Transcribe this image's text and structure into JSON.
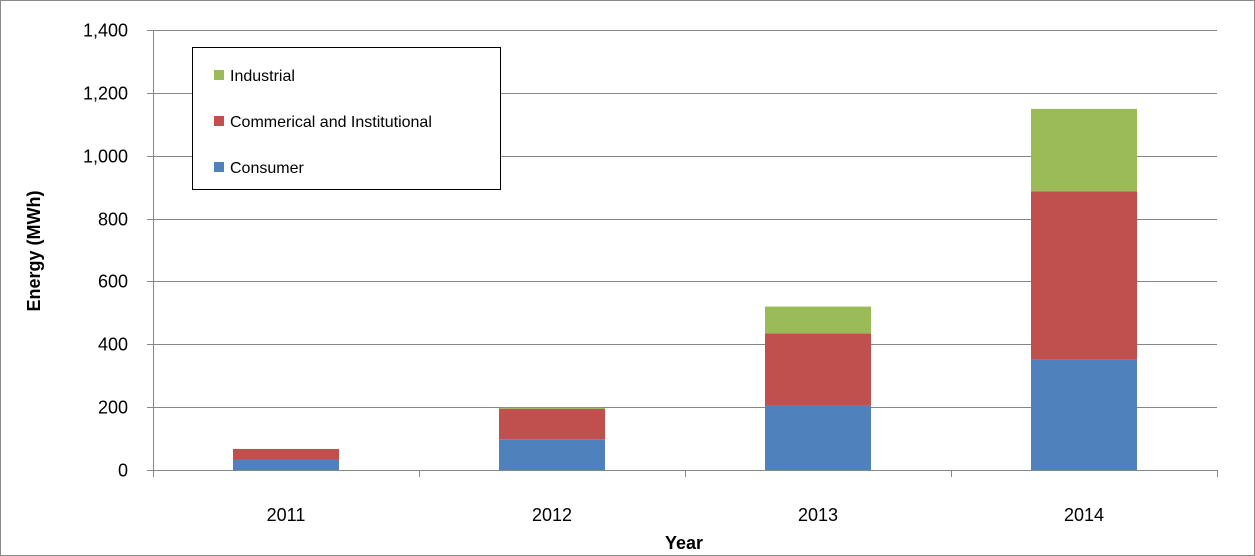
{
  "chart_data": {
    "type": "bar",
    "stacked": true,
    "categories": [
      "2011",
      "2012",
      "2013",
      "2014"
    ],
    "series": [
      {
        "name": "Consumer",
        "color": "#4F81BD",
        "values": [
          32,
          98,
          205,
          352
        ]
      },
      {
        "name": "Commerical and Institutional",
        "color": "#C0504D",
        "values": [
          35,
          97,
          230,
          535
        ]
      },
      {
        "name": "Industrial",
        "color": "#9BBB59",
        "values": [
          0,
          3,
          85,
          262
        ]
      }
    ],
    "xlabel": "Year",
    "ylabel": "Energy (MWh)",
    "ylim": [
      0,
      1400
    ],
    "yticks": [
      0,
      200,
      400,
      600,
      800,
      1000,
      1200,
      1400
    ],
    "ytick_labels": [
      "0",
      "200",
      "400",
      "600",
      "800",
      "1,000",
      "1,200",
      "1,400"
    ],
    "grid": true,
    "legend_position": "top-left",
    "legend_order": [
      "Industrial",
      "Commerical and Institutional",
      "Consumer"
    ]
  }
}
